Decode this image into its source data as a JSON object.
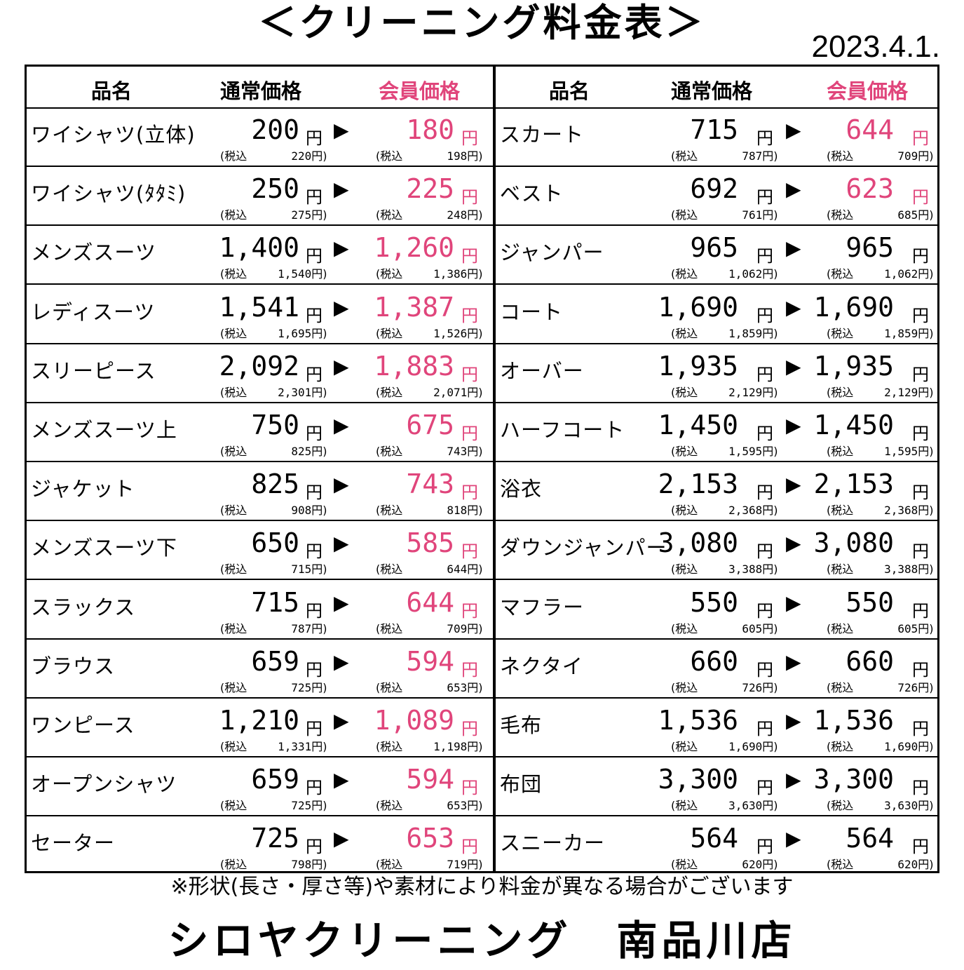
{
  "title": "＜クリーニング料金表＞",
  "date": "2023.4.1.",
  "headers": {
    "name": "品名",
    "regular": "通常価格",
    "member": "会員価格"
  },
  "labels": {
    "yen": "円",
    "arrow": "▶",
    "tax_open": "(税込",
    "tax_close": "円)"
  },
  "left_items": [
    {
      "name": "ワイシャツ(立体)",
      "regular": "200",
      "regular_tax": "220",
      "member": "180",
      "member_tax": "198",
      "member_pink": true
    },
    {
      "name": "ワイシャツ(ﾀﾀﾐ)",
      "regular": "250",
      "regular_tax": "275",
      "member": "225",
      "member_tax": "248",
      "member_pink": true
    },
    {
      "name": "メンズスーツ",
      "regular": "1,400",
      "regular_tax": "1,540",
      "member": "1,260",
      "member_tax": "1,386",
      "member_pink": true
    },
    {
      "name": "レディスーツ",
      "regular": "1,541",
      "regular_tax": "1,695",
      "member": "1,387",
      "member_tax": "1,526",
      "member_pink": true
    },
    {
      "name": "スリーピース",
      "regular": "2,092",
      "regular_tax": "2,301",
      "member": "1,883",
      "member_tax": "2,071",
      "member_pink": true
    },
    {
      "name": "メンズスーツ上",
      "regular": "750",
      "regular_tax": "825",
      "member": "675",
      "member_tax": "743",
      "member_pink": true
    },
    {
      "name": "ジャケット",
      "regular": "825",
      "regular_tax": "908",
      "member": "743",
      "member_tax": "818",
      "member_pink": true
    },
    {
      "name": "メンズスーツ下",
      "regular": "650",
      "regular_tax": "715",
      "member": "585",
      "member_tax": "644",
      "member_pink": true
    },
    {
      "name": "スラックス",
      "regular": "715",
      "regular_tax": "787",
      "member": "644",
      "member_tax": "709",
      "member_pink": true
    },
    {
      "name": "ブラウス",
      "regular": "659",
      "regular_tax": "725",
      "member": "594",
      "member_tax": "653",
      "member_pink": true
    },
    {
      "name": "ワンピース",
      "regular": "1,210",
      "regular_tax": "1,331",
      "member": "1,089",
      "member_tax": "1,198",
      "member_pink": true
    },
    {
      "name": "オープンシャツ",
      "regular": "659",
      "regular_tax": "725",
      "member": "594",
      "member_tax": "653",
      "member_pink": true
    },
    {
      "name": "セーター",
      "regular": "725",
      "regular_tax": "798",
      "member": "653",
      "member_tax": "719",
      "member_pink": true
    }
  ],
  "right_items": [
    {
      "name": "スカート",
      "regular": "715",
      "regular_tax": "787",
      "member": "644",
      "member_tax": "709",
      "member_pink": true
    },
    {
      "name": "ベスト",
      "regular": "692",
      "regular_tax": "761",
      "member": "623",
      "member_tax": "685",
      "member_pink": true
    },
    {
      "name": "ジャンパー",
      "regular": "965",
      "regular_tax": "1,062",
      "member": "965",
      "member_tax": "1,062",
      "member_pink": false
    },
    {
      "name": "コート",
      "regular": "1,690",
      "regular_tax": "1,859",
      "member": "1,690",
      "member_tax": "1,859",
      "member_pink": false
    },
    {
      "name": "オーバー",
      "regular": "1,935",
      "regular_tax": "2,129",
      "member": "1,935",
      "member_tax": "2,129",
      "member_pink": false
    },
    {
      "name": "ハーフコート",
      "regular": "1,450",
      "regular_tax": "1,595",
      "member": "1,450",
      "member_tax": "1,595",
      "member_pink": false
    },
    {
      "name": "浴衣",
      "regular": "2,153",
      "regular_tax": "2,368",
      "member": "2,153",
      "member_tax": "2,368",
      "member_pink": false
    },
    {
      "name": "ダウンジャンパー",
      "regular": "3,080",
      "regular_tax": "3,388",
      "member": "3,080",
      "member_tax": "3,388",
      "member_pink": false
    },
    {
      "name": "マフラー",
      "regular": "550",
      "regular_tax": "605",
      "member": "550",
      "member_tax": "605",
      "member_pink": false
    },
    {
      "name": "ネクタイ",
      "regular": "660",
      "regular_tax": "726",
      "member": "660",
      "member_tax": "726",
      "member_pink": false
    },
    {
      "name": "毛布",
      "regular": "1,536",
      "regular_tax": "1,690",
      "member": "1,536",
      "member_tax": "1,690",
      "member_pink": false
    },
    {
      "name": "布団",
      "regular": "3,300",
      "regular_tax": "3,630",
      "member": "3,300",
      "member_tax": "3,630",
      "member_pink": false
    },
    {
      "name": "スニーカー",
      "regular": "564",
      "regular_tax": "620",
      "member": "564",
      "member_tax": "620",
      "member_pink": false
    }
  ],
  "note": "※形状(長さ・厚さ等)や素材により料金が異なる場合がございます",
  "store": "シロヤクリーニング　南品川店",
  "colors": {
    "member_accent": "#e0457b",
    "text": "#000000"
  }
}
